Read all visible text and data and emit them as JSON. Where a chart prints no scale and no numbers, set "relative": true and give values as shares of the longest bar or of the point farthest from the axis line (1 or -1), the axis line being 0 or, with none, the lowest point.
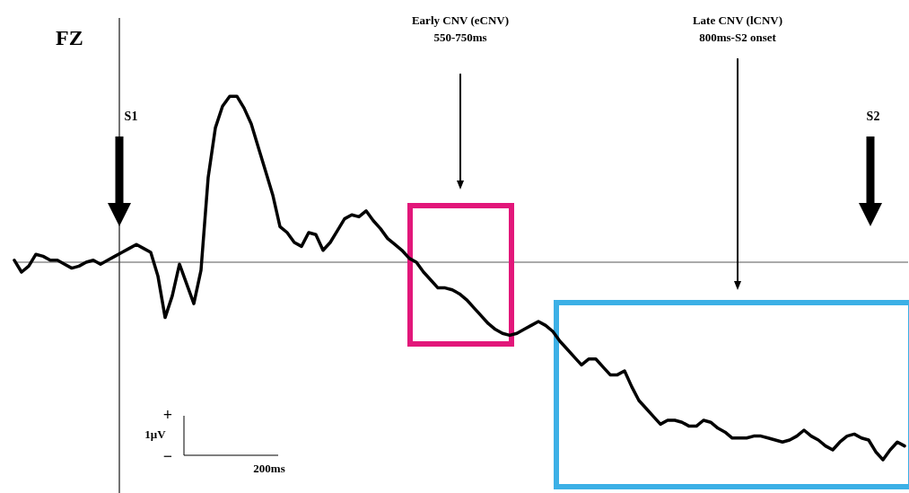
{
  "chart_data": {
    "type": "line",
    "title": "FZ",
    "relative": true,
    "marker": "none",
    "line_style": "solid",
    "categories": [
      null,
      null,
      null,
      null,
      null,
      null,
      null,
      null,
      null,
      null,
      null,
      null,
      null,
      null,
      null,
      null,
      null,
      null,
      null,
      null,
      null,
      null,
      null,
      null,
      null,
      null,
      null,
      null,
      null,
      null,
      null,
      null,
      null,
      null,
      null,
      null,
      null,
      null,
      null,
      null,
      null,
      null,
      null,
      null,
      null,
      null,
      null,
      null,
      null,
      null,
      null,
      null,
      null,
      null,
      null,
      null,
      null,
      null,
      null,
      null,
      null,
      null,
      null,
      null,
      null,
      null,
      null,
      null,
      null,
      null,
      null,
      null,
      null,
      null,
      null,
      null,
      null,
      null,
      null,
      null,
      null,
      null,
      null,
      null,
      null,
      null,
      null,
      null,
      null,
      null,
      null,
      null,
      null,
      null,
      null,
      null,
      null,
      null,
      null,
      null,
      null,
      null,
      null,
      null,
      null,
      null,
      null,
      null,
      null,
      null,
      null,
      null,
      null,
      null,
      null,
      null,
      null,
      null,
      null,
      null,
      null,
      null,
      null,
      null,
      null
    ],
    "series": [
      {
        "color": "#000000",
        "values": [
          0.01,
          -0.05,
          -0.02,
          0.04,
          0.03,
          0.01,
          0.01,
          -0.01,
          -0.03,
          -0.02,
          0,
          0.01,
          -0.01,
          0.01,
          0.03,
          0.05,
          0.07,
          0.09,
          0.07,
          0.05,
          -0.07,
          -0.28,
          -0.17,
          -0.01,
          -0.11,
          -0.21,
          -0.04,
          0.43,
          0.68,
          0.79,
          0.84,
          0.84,
          0.78,
          0.7,
          0.58,
          0.46,
          0.34,
          0.18,
          0.15,
          0.1,
          0.08,
          0.15,
          0.14,
          0.06,
          0.1,
          0.16,
          0.22,
          0.24,
          0.23,
          0.26,
          0.21,
          0.17,
          0.12,
          0.09,
          0.06,
          0.02,
          0,
          -0.05,
          -0.09,
          -0.13,
          -0.13,
          -0.14,
          -0.16,
          -0.19,
          -0.23,
          -0.27,
          -0.31,
          -0.34,
          -0.36,
          -0.37,
          -0.36,
          -0.34,
          -0.32,
          -0.3,
          -0.32,
          -0.35,
          -0.4,
          -0.44,
          -0.48,
          -0.52,
          -0.49,
          -0.49,
          -0.53,
          -0.57,
          -0.57,
          -0.55,
          -0.63,
          -0.7,
          -0.74,
          -0.78,
          -0.82,
          -0.8,
          -0.8,
          -0.81,
          -0.83,
          -0.83,
          -0.8,
          -0.81,
          -0.84,
          -0.86,
          -0.89,
          -0.89,
          -0.89,
          -0.88,
          -0.88,
          -0.89,
          -0.9,
          -0.91,
          -0.9,
          -0.88,
          -0.85,
          -0.88,
          -0.9,
          -0.93,
          -0.95,
          -0.91,
          -0.88,
          -0.87,
          -0.89,
          -0.9,
          -0.96,
          -1,
          -0.95,
          -0.91,
          -0.93
        ]
      }
    ],
    "annotations": [
      "S1",
      "S2",
      "Early CNV (eCNV)\n550-750ms",
      "Late CNV (lCNV)\n800ms-S2 onset",
      "+",
      "1μV",
      "−",
      "200ms"
    ]
  }
}
